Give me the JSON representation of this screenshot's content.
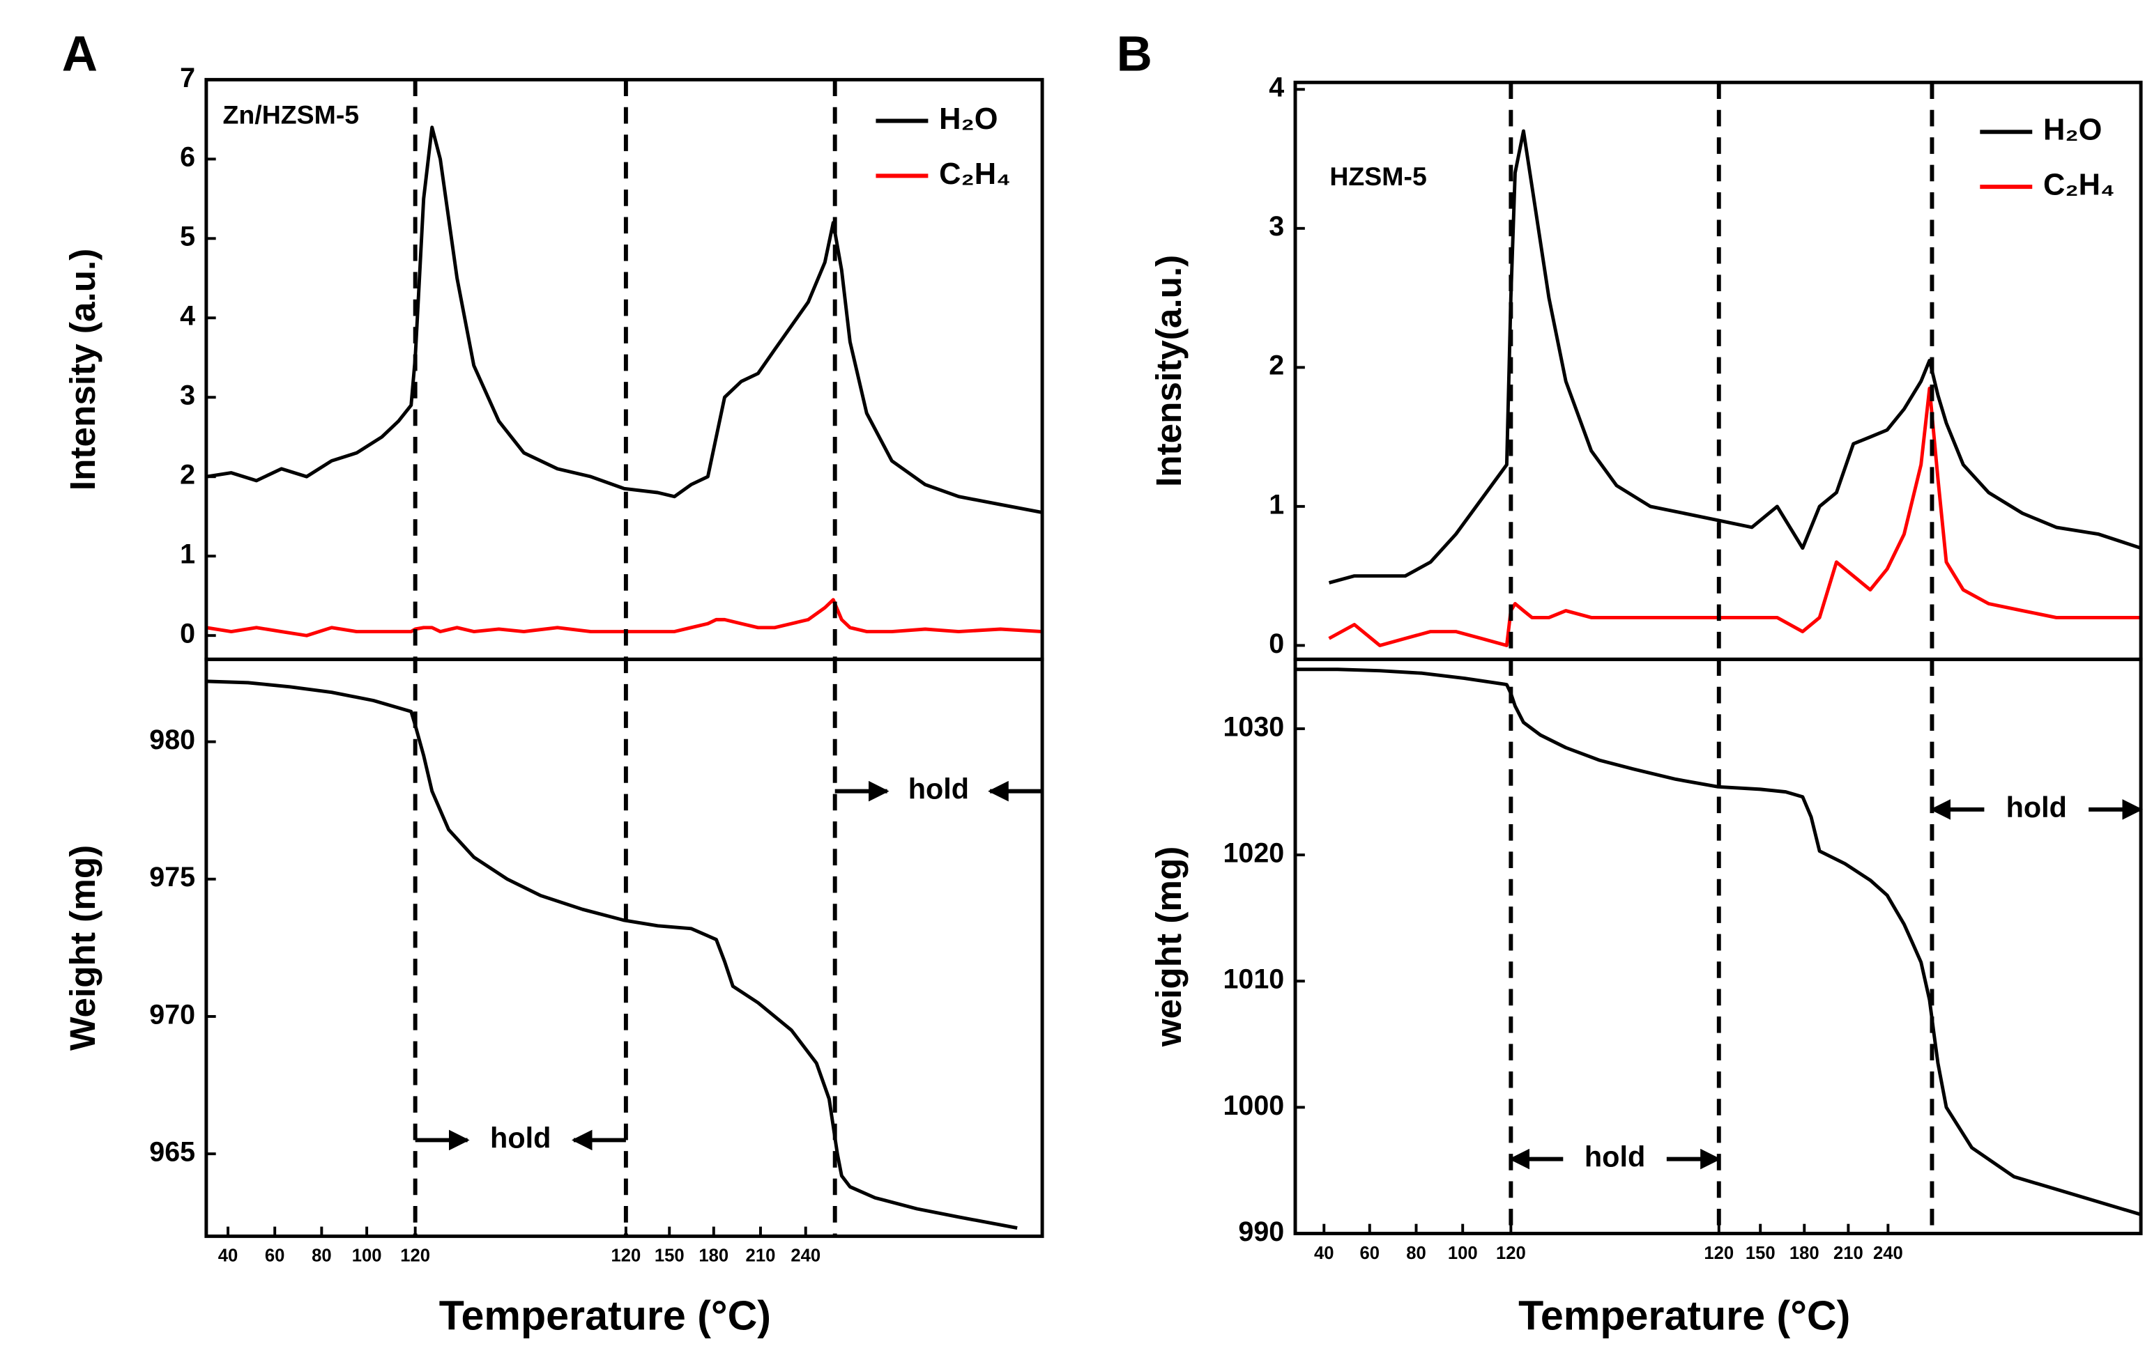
{
  "chart_data": [
    {
      "type": "line",
      "panel_label": "A",
      "x_label": "Temperature (°C)",
      "sample": "Zn/HZSM-5",
      "xlim": [
        0,
        100
      ],
      "xticks": [
        {
          "value": 2.6,
          "label": "40"
        },
        {
          "value": 8.2,
          "label": "60"
        },
        {
          "value": 13.8,
          "label": "80"
        },
        {
          "value": 19.2,
          "label": "100"
        },
        {
          "value": 25,
          "label": "120"
        },
        {
          "value": 50.2,
          "label": "120"
        },
        {
          "value": 55.4,
          "label": "150"
        },
        {
          "value": 60.7,
          "label": "180"
        },
        {
          "value": 66.3,
          "label": "210"
        },
        {
          "value": 71.7,
          "label": "240"
        }
      ],
      "vlines": [
        25,
        50.2,
        75.2
      ],
      "subplots": [
        {
          "y_label": "Intensity (a.u.)",
          "ylim": [
            -0.3,
            7
          ],
          "yticks": [
            0,
            1,
            2,
            3,
            4,
            5,
            6,
            7
          ],
          "x": [
            0,
            3,
            6,
            9,
            12,
            15,
            18,
            21,
            23,
            24.5,
            25,
            26,
            27,
            28,
            30,
            32,
            35,
            38,
            42,
            46,
            50,
            54,
            56,
            58,
            60,
            61,
            62,
            64,
            66,
            68,
            70,
            72,
            74,
            75,
            76,
            77,
            79,
            82,
            86,
            90,
            95,
            100
          ],
          "series": [
            {
              "name": "H₂O",
              "color": "#000000",
              "values": [
                2.0,
                2.05,
                1.95,
                2.1,
                2.0,
                2.2,
                2.3,
                2.5,
                2.7,
                2.9,
                3.5,
                5.5,
                6.4,
                6.0,
                4.5,
                3.4,
                2.7,
                2.3,
                2.1,
                2.0,
                1.85,
                1.8,
                1.75,
                1.9,
                2.0,
                2.5,
                3.0,
                3.2,
                3.3,
                3.6,
                3.9,
                4.2,
                4.7,
                5.2,
                4.6,
                3.7,
                2.8,
                2.2,
                1.9,
                1.75,
                1.65,
                1.55
              ]
            },
            {
              "name": "C₂H₄",
              "color": "#ff0000",
              "values": [
                0.1,
                0.05,
                0.1,
                0.05,
                0.0,
                0.1,
                0.05,
                0.05,
                0.05,
                0.05,
                0.08,
                0.1,
                0.1,
                0.05,
                0.1,
                0.05,
                0.08,
                0.05,
                0.1,
                0.05,
                0.05,
                0.05,
                0.05,
                0.1,
                0.15,
                0.2,
                0.2,
                0.15,
                0.1,
                0.1,
                0.15,
                0.2,
                0.35,
                0.45,
                0.2,
                0.1,
                0.05,
                0.05,
                0.08,
                0.05,
                0.08,
                0.05
              ]
            }
          ]
        },
        {
          "y_label": "Weight (mg)",
          "ylim": [
            962,
            983
          ],
          "yticks": [
            965,
            970,
            975,
            980
          ],
          "x": [
            0,
            5,
            10,
            15,
            20,
            24.5,
            25,
            26,
            27,
            29,
            32,
            36,
            40,
            45,
            50,
            54,
            58,
            61,
            62,
            63,
            64,
            66,
            70,
            73,
            74.5,
            75,
            75.5,
            76,
            77,
            80,
            85,
            90,
            97
          ],
          "series": [
            {
              "color": "#000000",
              "values": [
                982.2,
                982.15,
                982.0,
                981.8,
                981.5,
                981.1,
                980.6,
                979.5,
                978.2,
                976.8,
                975.8,
                975.0,
                974.4,
                973.9,
                973.5,
                973.3,
                973.2,
                972.8,
                972.0,
                971.1,
                970.9,
                970.5,
                969.5,
                968.3,
                967.0,
                966.0,
                965.0,
                964.2,
                963.8,
                963.4,
                963.0,
                962.7,
                962.3
              ]
            }
          ],
          "annotations": [
            {
              "text": "hold",
              "x": [
                25,
                50.2
              ],
              "y": 965.5,
              "arrows": "in"
            },
            {
              "text": "hold",
              "x": [
                75.2,
                100
              ],
              "y": 978.2,
              "arrows": "in"
            }
          ]
        }
      ]
    },
    {
      "type": "line",
      "panel_label": "B",
      "x_label": "Temperature (°C)",
      "sample": "HZSM-5",
      "xlim": [
        0,
        100
      ],
      "xticks": [
        {
          "value": 3.4,
          "label": "40"
        },
        {
          "value": 8.8,
          "label": "60"
        },
        {
          "value": 14.3,
          "label": "80"
        },
        {
          "value": 19.8,
          "label": "100"
        },
        {
          "value": 25.5,
          "label": "120"
        },
        {
          "value": 50.1,
          "label": "120"
        },
        {
          "value": 55.0,
          "label": "150"
        },
        {
          "value": 60.2,
          "label": "180"
        },
        {
          "value": 65.4,
          "label": "210"
        },
        {
          "value": 70.1,
          "label": "240"
        }
      ],
      "vlines": [
        25.5,
        50.1,
        75.3
      ],
      "subplots": [
        {
          "y_label": "Intensity(a.u.)",
          "ylim": [
            -0.1,
            4.05
          ],
          "yticks": [
            0,
            1,
            2,
            3,
            4
          ],
          "x": [
            4,
            7,
            10,
            13,
            16,
            19,
            22,
            25,
            25.5,
            26,
            27,
            28,
            30,
            32,
            35,
            38,
            42,
            46,
            50,
            54,
            57,
            60,
            62,
            64,
            66,
            68,
            70,
            72,
            74,
            75,
            76,
            77,
            79,
            82,
            86,
            90,
            95,
            100
          ],
          "series": [
            {
              "name": "H₂O",
              "color": "#000000",
              "values": [
                0.45,
                0.5,
                0.5,
                0.5,
                0.6,
                0.8,
                1.05,
                1.3,
                2.5,
                3.4,
                3.7,
                3.3,
                2.5,
                1.9,
                1.4,
                1.15,
                1.0,
                0.95,
                0.9,
                0.85,
                1.0,
                0.7,
                1.0,
                1.1,
                1.45,
                1.5,
                1.55,
                1.7,
                1.9,
                2.05,
                1.8,
                1.6,
                1.3,
                1.1,
                0.95,
                0.85,
                0.8,
                0.7
              ]
            },
            {
              "name": "C₂H₄",
              "color": "#ff0000",
              "values": [
                0.05,
                0.15,
                0.0,
                0.05,
                0.1,
                0.1,
                0.05,
                0.0,
                0.25,
                0.3,
                0.25,
                0.2,
                0.2,
                0.25,
                0.2,
                0.2,
                0.2,
                0.2,
                0.2,
                0.2,
                0.2,
                0.1,
                0.2,
                0.6,
                0.5,
                0.4,
                0.55,
                0.8,
                1.3,
                1.85,
                1.2,
                0.6,
                0.4,
                0.3,
                0.25,
                0.2,
                0.2,
                0.2
              ]
            }
          ]
        },
        {
          "y_label": "weight (mg)",
          "ylim": [
            990,
            1035.5
          ],
          "yticks": [
            990,
            1000,
            1010,
            1020,
            1030
          ],
          "x": [
            0,
            5,
            10,
            15,
            20,
            25,
            25.5,
            26,
            27,
            29,
            32,
            36,
            40,
            45,
            50,
            55,
            58,
            60,
            61,
            62,
            65,
            68,
            70,
            72,
            73,
            74,
            75,
            75.5,
            76,
            77,
            80,
            85,
            90,
            100
          ],
          "series": [
            {
              "color": "#000000",
              "values": [
                1034.7,
                1034.7,
                1034.6,
                1034.4,
                1034.0,
                1033.5,
                1032.8,
                1031.8,
                1030.5,
                1029.5,
                1028.5,
                1027.5,
                1026.8,
                1026.0,
                1025.4,
                1025.2,
                1025.0,
                1024.6,
                1023.0,
                1020.3,
                1019.3,
                1018.0,
                1016.8,
                1014.5,
                1013.0,
                1011.5,
                1008.5,
                1006.0,
                1003.5,
                1000.0,
                996.8,
                994.5,
                993.5,
                991.5
              ]
            }
          ],
          "annotations": [
            {
              "text": "hold",
              "x": [
                25.5,
                50.1
              ],
              "y": 995.9,
              "arrows": "out"
            },
            {
              "text": "hold",
              "x": [
                75.3,
                100
              ],
              "y": 1023.6,
              "arrows": "out"
            }
          ]
        }
      ]
    }
  ]
}
